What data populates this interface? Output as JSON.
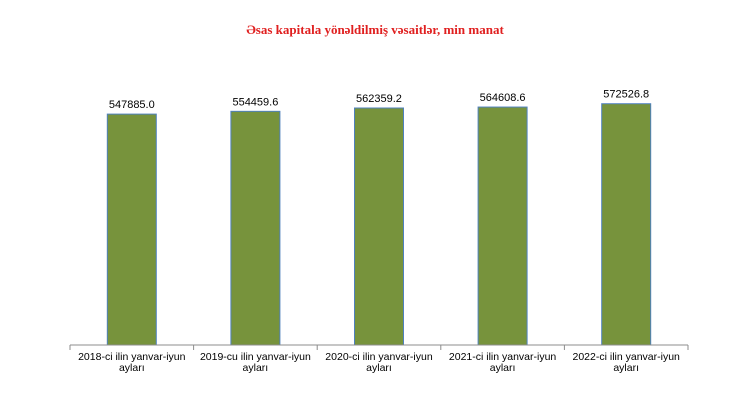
{
  "chart_data": {
    "type": "bar",
    "title": "Əsas kapitala yönəldilmiş vəsaitlər, min manat",
    "categories": [
      [
        "2018-ci ilin yanvar-iyun",
        "ayları"
      ],
      [
        "2019-cu ilin yanvar-iyun",
        "ayları"
      ],
      [
        "2020-ci ilin yanvar-iyun",
        "ayları"
      ],
      [
        "2021-ci ilin yanvar-iyun",
        "ayları"
      ],
      [
        "2022-ci ilin yanvar-iyun",
        "ayları"
      ]
    ],
    "values": [
      547885.0,
      554459.6,
      562359.2,
      564608.6,
      572526.8
    ],
    "value_labels": [
      "547885.0",
      "554459.6",
      "562359.2",
      "564608.6",
      "572526.8"
    ],
    "ylim": [
      0,
      700000
    ],
    "bar_color": "#77933c",
    "bar_edge_color": "#4f81bd",
    "title_color": "#e02020",
    "grid": false,
    "legend": "none"
  }
}
